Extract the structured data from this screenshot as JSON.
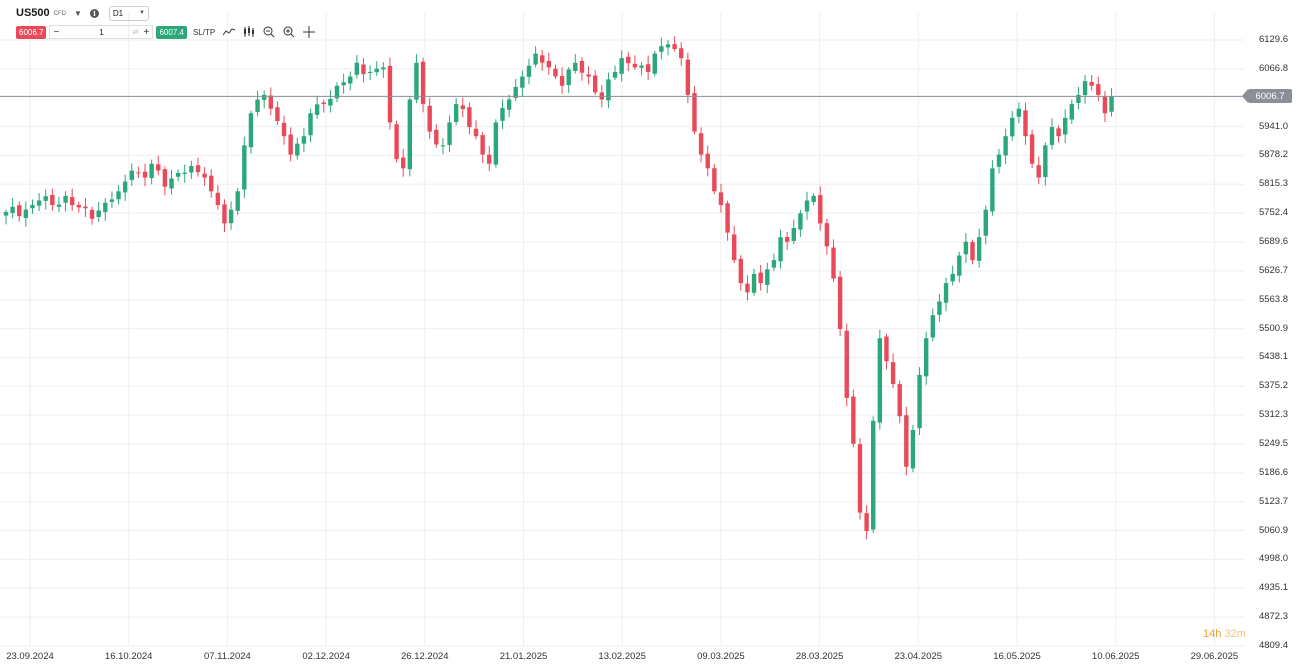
{
  "toolbar": {
    "symbol": "US500",
    "symbol_type": "CFD",
    "info_glyph": "i",
    "timeframe": "D1",
    "sell_price": "6006.7",
    "quantity": "1",
    "buy_price": "6007.4",
    "sltp_label": "SL/TP",
    "tools": [
      "line-chart-icon",
      "candles-icon",
      "zoom-out-icon",
      "zoom-in-icon",
      "crosshair-icon"
    ]
  },
  "colors": {
    "up": "#2aa87a",
    "down": "#e84a5a",
    "grid": "#eeeeee",
    "current_price_line": "#8a8f98",
    "timer": "#f0a030"
  },
  "current_price": "6006.7",
  "timer": {
    "hours": "14h",
    "minutes": "32m"
  },
  "chart_data": {
    "type": "candlestick",
    "symbol": "US500",
    "timeframe": "D1",
    "current_price": 6006.7,
    "grid": true,
    "ylim": [
      4809.4,
      6160
    ],
    "y_ticks": [
      "6129.6",
      "6066.8",
      "6006.7",
      "5941.0",
      "5878.2",
      "5815.3",
      "5752.4",
      "5689.6",
      "5626.7",
      "5563.8",
      "5500.9",
      "5438.1",
      "5375.2",
      "5312.3",
      "5249.5",
      "5186.6",
      "5123.7",
      "5060.9",
      "4998.0",
      "4935.1",
      "4872.3",
      "4809.4"
    ],
    "x_ticks": [
      "23.09.2024",
      "16.10.2024",
      "07.11.2024",
      "02.12.2024",
      "26.12.2024",
      "21.01.2025",
      "13.02.2025",
      "09.03.2025",
      "28.03.2025",
      "23.04.2025",
      "16.05.2025",
      "10.06.2025",
      "29.06.2025"
    ],
    "close_path": [
      [
        0,
        5755
      ],
      [
        3,
        5760
      ],
      [
        5,
        5780
      ],
      [
        7,
        5770
      ],
      [
        9,
        5790
      ],
      [
        11,
        5765
      ],
      [
        13,
        5740
      ],
      [
        15,
        5775
      ],
      [
        17,
        5800
      ],
      [
        19,
        5845
      ],
      [
        21,
        5830
      ],
      [
        22,
        5860
      ],
      [
        24,
        5810
      ],
      [
        26,
        5840
      ],
      [
        28,
        5855
      ],
      [
        30,
        5830
      ],
      [
        31,
        5800
      ],
      [
        32,
        5770
      ],
      [
        33,
        5730
      ],
      [
        34,
        5760
      ],
      [
        35,
        5800
      ],
      [
        36,
        5900
      ],
      [
        37,
        5970
      ],
      [
        38,
        6000
      ],
      [
        39,
        6010
      ],
      [
        40,
        5980
      ],
      [
        42,
        5920
      ],
      [
        43,
        5880
      ],
      [
        45,
        5920
      ],
      [
        46,
        5970
      ],
      [
        48,
        5990
      ],
      [
        50,
        6030
      ],
      [
        52,
        6050
      ],
      [
        53,
        6080
      ],
      [
        55,
        6060
      ],
      [
        57,
        6070
      ],
      [
        58,
        5950
      ],
      [
        59,
        5870
      ],
      [
        60,
        5850
      ],
      [
        61,
        6000
      ],
      [
        62,
        6080
      ],
      [
        63,
        5990
      ],
      [
        64,
        5930
      ],
      [
        66,
        5900
      ],
      [
        67,
        5950
      ],
      [
        68,
        5990
      ],
      [
        70,
        5940
      ],
      [
        71,
        5920
      ],
      [
        72,
        5880
      ],
      [
        73,
        5860
      ],
      [
        74,
        5950
      ],
      [
        76,
        6000
      ],
      [
        78,
        6050
      ],
      [
        80,
        6100
      ],
      [
        82,
        6070
      ],
      [
        84,
        6030
      ],
      [
        86,
        6080
      ],
      [
        88,
        6050
      ],
      [
        90,
        6000
      ],
      [
        92,
        6060
      ],
      [
        93,
        6090
      ],
      [
        95,
        6070
      ],
      [
        97,
        6060
      ],
      [
        98,
        6100
      ],
      [
        100,
        6120
      ],
      [
        101,
        6110
      ],
      [
        102,
        6090
      ],
      [
        103,
        6010
      ],
      [
        104,
        5930
      ],
      [
        105,
        5880
      ],
      [
        106,
        5850
      ],
      [
        107,
        5800
      ],
      [
        108,
        5770
      ],
      [
        109,
        5710
      ],
      [
        110,
        5650
      ],
      [
        111,
        5600
      ],
      [
        112,
        5580
      ],
      [
        113,
        5620
      ],
      [
        114,
        5600
      ],
      [
        115,
        5630
      ],
      [
        116,
        5650
      ],
      [
        117,
        5700
      ],
      [
        118,
        5690
      ],
      [
        119,
        5720
      ],
      [
        121,
        5780
      ],
      [
        122,
        5790
      ],
      [
        123,
        5730
      ],
      [
        124,
        5680
      ],
      [
        125,
        5610
      ],
      [
        126,
        5500
      ],
      [
        127,
        5350
      ],
      [
        128,
        5250
      ],
      [
        129,
        5100
      ],
      [
        130,
        5060
      ],
      [
        131,
        5300
      ],
      [
        132,
        5480
      ],
      [
        133,
        5430
      ],
      [
        134,
        5380
      ],
      [
        135,
        5310
      ],
      [
        136,
        5200
      ],
      [
        137,
        5280
      ],
      [
        138,
        5400
      ],
      [
        139,
        5480
      ],
      [
        140,
        5530
      ],
      [
        141,
        5560
      ],
      [
        142,
        5600
      ],
      [
        143,
        5620
      ],
      [
        144,
        5660
      ],
      [
        145,
        5690
      ],
      [
        146,
        5650
      ],
      [
        147,
        5700
      ],
      [
        148,
        5760
      ],
      [
        149,
        5850
      ],
      [
        150,
        5880
      ],
      [
        151,
        5920
      ],
      [
        152,
        5960
      ],
      [
        153,
        5980
      ],
      [
        154,
        5920
      ],
      [
        155,
        5860
      ],
      [
        156,
        5830
      ],
      [
        157,
        5900
      ],
      [
        158,
        5940
      ],
      [
        159,
        5920
      ],
      [
        160,
        5960
      ],
      [
        161,
        5990
      ],
      [
        162,
        6010
      ],
      [
        163,
        6040
      ],
      [
        164,
        6030
      ],
      [
        165,
        6010
      ],
      [
        166,
        5970
      ],
      [
        167,
        6006.7
      ]
    ]
  }
}
